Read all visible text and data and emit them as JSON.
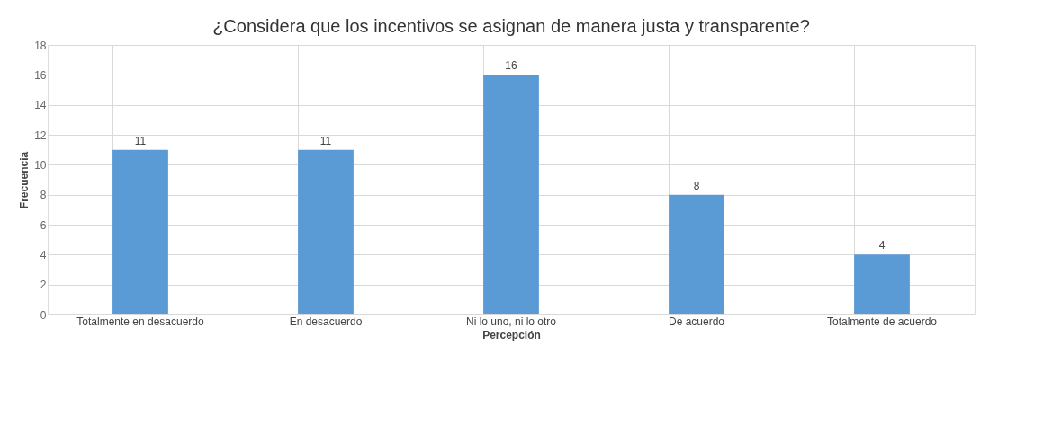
{
  "chart_data": {
    "type": "bar",
    "title": "¿Considera que los incentivos se asignan de manera justa y transparente?",
    "xlabel": "Percepción",
    "ylabel": "Frecuencia",
    "categories": [
      "Totalmente en desacuerdo",
      "En desacuerdo",
      "Ni lo uno, ni lo otro",
      "De acuerdo",
      "Totalmente de acuerdo"
    ],
    "values": [
      11,
      11,
      16,
      8,
      4
    ],
    "color": "#5b9bd5",
    "ylim": [
      0,
      18
    ],
    "yticks": [
      0,
      2,
      4,
      6,
      8,
      10,
      12,
      14,
      16,
      18
    ],
    "grid": true,
    "data_labels": true
  }
}
